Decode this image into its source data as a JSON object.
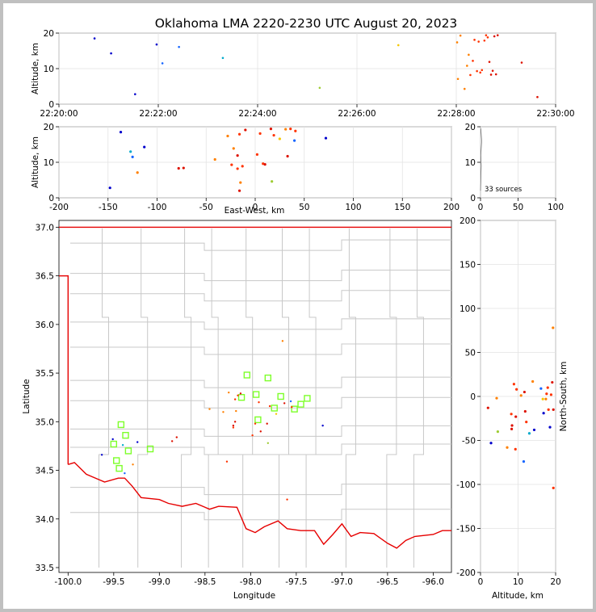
{
  "chart_data": {
    "type": "scatter",
    "title": "Oklahoma LMA 2220-2230 UTC August 20, 2023",
    "sources_label": "33 sources",
    "colors": {
      "early": "#0000cc",
      "mid_blue": "#1565ff",
      "cyan": "#00aacc",
      "green": "#9ecc33",
      "yellow": "#f5c800",
      "orange": "#ff8000",
      "red_orange": "#ff3300",
      "red": "#dd1100",
      "state_border": "#e60000",
      "county_line": "#c8c8c8",
      "station": "#7dff2a"
    },
    "panels": {
      "time_alt": {
        "xlabel": "",
        "ylabel": "Altitude, km",
        "xticks": [
          "22:20:00",
          "22:22:00",
          "22:24:00",
          "22:26:00",
          "22:28:00",
          "22:30:00"
        ],
        "xlim": [
          0,
          600
        ],
        "ylim": [
          0,
          20
        ],
        "yticks": [
          0,
          10,
          20
        ]
      },
      "ew_alt": {
        "xlabel": "East-West, km",
        "ylabel": "Altitude, km",
        "xlim": [
          -200,
          200
        ],
        "xticks": [
          -200,
          -150,
          -100,
          -50,
          0,
          50,
          100,
          150,
          200
        ],
        "ylim": [
          0,
          20
        ],
        "yticks": [
          0,
          10,
          20
        ]
      },
      "hist": {
        "xlim": [
          0,
          100
        ],
        "xticks": [
          0,
          50,
          100
        ],
        "ylim": [
          0,
          20
        ],
        "yticks": [
          0,
          10,
          20
        ]
      },
      "map": {
        "xlabel": "Longitude",
        "ylabel": "Latitude",
        "xlim": [
          -100.1,
          -95.8
        ],
        "xticks": [
          -100.0,
          -99.5,
          -99.0,
          -98.5,
          -98.0,
          -97.5,
          -97.0,
          -96.5,
          -96.0
        ],
        "ylim": [
          33.45,
          37.07
        ],
        "yticks": [
          33.5,
          34.0,
          34.5,
          35.0,
          35.5,
          36.0,
          36.5,
          37.0
        ]
      },
      "alt_ns": {
        "xlabel": "Altitude, km",
        "ylabel": "North-South, km",
        "xlim": [
          0,
          20
        ],
        "xticks": [
          0,
          10,
          20
        ],
        "ylim": [
          -200,
          200
        ],
        "yticks": [
          -200,
          -150,
          -100,
          -50,
          0,
          50,
          100,
          150,
          200
        ]
      }
    },
    "sources": [
      {
        "t": 43,
        "alt": 18.5,
        "ew": -137,
        "ns": -35,
        "lon": -99.51,
        "lat": 34.82,
        "c": "early"
      },
      {
        "t": 63,
        "alt": 14.3,
        "ew": -113,
        "ns": -38,
        "lon": -99.24,
        "lat": 34.79,
        "c": "early"
      },
      {
        "t": 92,
        "alt": 2.8,
        "ew": -148,
        "ns": -53,
        "lon": -99.63,
        "lat": 34.66,
        "c": "early"
      },
      {
        "t": 118,
        "alt": 16.8,
        "ew": 72,
        "ns": -19,
        "lon": -97.21,
        "lat": 34.96,
        "c": "early"
      },
      {
        "t": 125,
        "alt": 11.5,
        "ew": -125,
        "ns": -74,
        "lon": -99.38,
        "lat": 34.47,
        "c": "mid_blue"
      },
      {
        "t": 145,
        "alt": 16.1,
        "ew": 40,
        "ns": 9,
        "lon": -97.56,
        "lat": 35.21,
        "c": "mid_blue"
      },
      {
        "t": 198,
        "alt": 13.0,
        "ew": -127,
        "ns": -42,
        "lon": -99.4,
        "lat": 34.76,
        "c": "cyan"
      },
      {
        "t": 315,
        "alt": 4.6,
        "ew": 17,
        "ns": -40,
        "lon": -97.81,
        "lat": 34.78,
        "c": "green"
      },
      {
        "t": 410,
        "alt": 16.6,
        "ew": 25,
        "ns": -3,
        "lon": -97.72,
        "lat": 35.08,
        "c": "yellow"
      },
      {
        "t": 481,
        "alt": 17.4,
        "ew": -28,
        "ns": -3,
        "lon": -98.3,
        "lat": 35.1,
        "c": "orange"
      },
      {
        "t": 482,
        "alt": 7.1,
        "ew": -120,
        "ns": -58,
        "lon": -99.29,
        "lat": 34.56,
        "c": "orange"
      },
      {
        "t": 485,
        "alt": 19.3,
        "ew": 31,
        "ns": 78,
        "lon": -97.65,
        "lat": 35.83,
        "c": "orange"
      },
      {
        "t": 490,
        "alt": 4.3,
        "ew": -15,
        "ns": -2,
        "lon": -98.16,
        "lat": 35.11,
        "c": "orange"
      },
      {
        "t": 493,
        "alt": 10.8,
        "ew": -41,
        "ns": 1,
        "lon": -98.45,
        "lat": 35.13,
        "c": "orange"
      },
      {
        "t": 495,
        "alt": 13.9,
        "ew": -22,
        "ns": 17,
        "lon": -98.24,
        "lat": 35.3,
        "c": "orange"
      },
      {
        "t": 497,
        "alt": 8.2,
        "ew": -18,
        "ns": -20,
        "lon": -98.19,
        "lat": 34.94,
        "c": "red_orange"
      },
      {
        "t": 500,
        "alt": 12.2,
        "ew": 2,
        "ns": -29,
        "lon": -97.98,
        "lat": 34.86,
        "c": "red_orange"
      },
      {
        "t": 502,
        "alt": 18.1,
        "ew": 5,
        "ns": -15,
        "lon": -97.95,
        "lat": 34.98,
        "c": "red_orange"
      },
      {
        "t": 505,
        "alt": 9.3,
        "ew": -24,
        "ns": -60,
        "lon": -98.26,
        "lat": 34.59,
        "c": "red_orange"
      },
      {
        "t": 507,
        "alt": 17.6,
        "ew": 19,
        "ns": 3,
        "lon": -97.79,
        "lat": 35.16,
        "c": "red_orange"
      },
      {
        "t": 509,
        "alt": 8.9,
        "ew": -13,
        "ns": 14,
        "lon": -98.14,
        "lat": 35.27,
        "c": "red_orange"
      },
      {
        "t": 511,
        "alt": 9.6,
        "ew": 8,
        "ns": 8,
        "lon": -97.91,
        "lat": 35.2,
        "c": "red_orange"
      },
      {
        "t": 514,
        "alt": 17.9,
        "ew": -16,
        "ns": 10,
        "lon": -98.17,
        "lat": 35.23,
        "c": "red_orange"
      },
      {
        "t": 516,
        "alt": 19.4,
        "ew": 36,
        "ns": -104,
        "lon": -97.6,
        "lat": 34.2,
        "c": "red_orange"
      },
      {
        "t": 518,
        "alt": 18.8,
        "ew": 41,
        "ns": 2,
        "lon": -97.55,
        "lat": 35.15,
        "c": "red_orange"
      },
      {
        "t": 520,
        "alt": 11.9,
        "ew": -18,
        "ns": -17,
        "lon": -98.19,
        "lat": 34.96,
        "c": "red"
      },
      {
        "t": 522,
        "alt": 8.3,
        "ew": -78,
        "ns": -37,
        "lon": -98.86,
        "lat": 34.8,
        "c": "red"
      },
      {
        "t": 524,
        "alt": 9.4,
        "ew": 10,
        "ns": -23,
        "lon": -97.89,
        "lat": 34.9,
        "c": "red"
      },
      {
        "t": 526,
        "alt": 19.1,
        "ew": -10,
        "ns": 16,
        "lon": -98.11,
        "lat": 35.29,
        "c": "red"
      },
      {
        "t": 528,
        "alt": 8.4,
        "ew": -73,
        "ns": -33,
        "lon": -98.81,
        "lat": 34.84,
        "c": "red"
      },
      {
        "t": 530,
        "alt": 19.4,
        "ew": 16,
        "ns": -15,
        "lon": -97.82,
        "lat": 34.98,
        "c": "red"
      },
      {
        "t": 559,
        "alt": 11.7,
        "ew": 33,
        "ns": 5,
        "lon": -97.63,
        "lat": 35.19,
        "c": "red"
      },
      {
        "t": 578,
        "alt": 2.0,
        "ew": -16,
        "ns": -13,
        "lon": -98.17,
        "lat": 35.0,
        "c": "red"
      }
    ],
    "stations": [
      {
        "lon": -99.42,
        "lat": 34.97
      },
      {
        "lon": -99.37,
        "lat": 34.86
      },
      {
        "lon": -99.5,
        "lat": 34.77
      },
      {
        "lon": -99.34,
        "lat": 34.7
      },
      {
        "lon": -99.1,
        "lat": 34.72
      },
      {
        "lon": -99.47,
        "lat": 34.6
      },
      {
        "lon": -99.44,
        "lat": 34.52
      },
      {
        "lon": -98.04,
        "lat": 35.48
      },
      {
        "lon": -98.1,
        "lat": 35.25
      },
      {
        "lon": -97.94,
        "lat": 35.28
      },
      {
        "lon": -97.92,
        "lat": 35.02
      },
      {
        "lon": -97.81,
        "lat": 35.45
      },
      {
        "lon": -97.74,
        "lat": 35.14
      },
      {
        "lon": -97.67,
        "lat": 35.26
      },
      {
        "lon": -97.52,
        "lat": 35.13
      },
      {
        "lon": -97.45,
        "lat": 35.18
      },
      {
        "lon": -97.38,
        "lat": 35.24
      }
    ]
  }
}
